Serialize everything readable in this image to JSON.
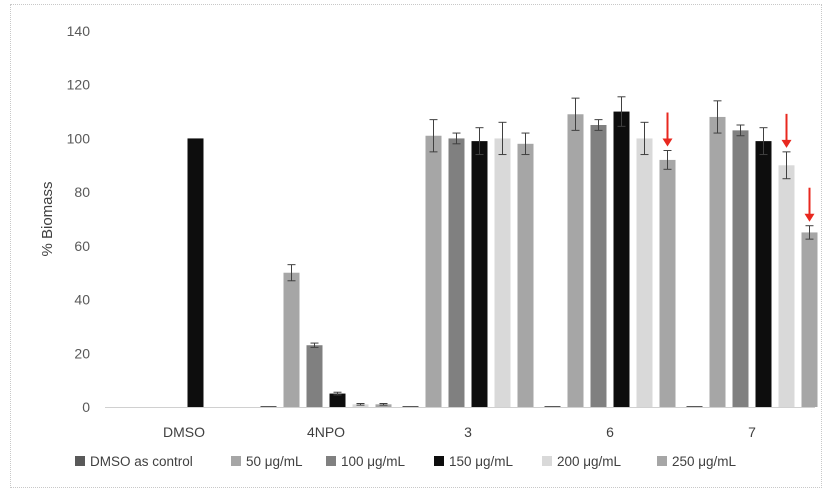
{
  "chart_data": {
    "type": "bar",
    "title": "",
    "xlabel": "",
    "ylabel": "% Biomass",
    "ylim": [
      0,
      140
    ],
    "yticks": [
      "0",
      "20",
      "40",
      "60",
      "80",
      "100",
      "120",
      "140"
    ],
    "grid": false,
    "legend_position": "bottom",
    "categories": [
      "DMSO",
      "4NPO",
      "3",
      "6",
      "7"
    ],
    "series": [
      {
        "name": "DMSO as control",
        "color": "#595959",
        "values": [
          null,
          0,
          0,
          0,
          0
        ],
        "errors": [
          0,
          0,
          0,
          0,
          0
        ]
      },
      {
        "name": "50 μg/mL",
        "color": "#a6a6a6",
        "values": [
          null,
          50,
          101,
          109,
          108
        ],
        "errors": [
          0,
          3,
          6,
          6,
          6
        ]
      },
      {
        "name": "100 μg/mL",
        "color": "#808080",
        "values": [
          null,
          23,
          100,
          105,
          103
        ],
        "errors": [
          0,
          0.8,
          2,
          2,
          2
        ]
      },
      {
        "name": "150 μg/mL",
        "color": "#0d0d0d",
        "values": [
          100,
          5,
          99,
          110,
          99
        ],
        "errors": [
          0,
          0.5,
          5,
          5.5,
          5
        ]
      },
      {
        "name": "200 μg/mL",
        "color": "#d9d9d9",
        "values": [
          null,
          1,
          100,
          100,
          90
        ],
        "errors": [
          0,
          0.3,
          6,
          6,
          5
        ]
      },
      {
        "name": "250 μg/mL",
        "color": "#a6a6a6",
        "values": [
          null,
          1,
          98,
          92,
          65
        ],
        "errors": [
          0,
          0.3,
          4,
          3.5,
          2.5
        ]
      }
    ],
    "annotations": [
      {
        "type": "arrow",
        "color": "#e8281f",
        "category": "6",
        "series": "250 μg/mL"
      },
      {
        "type": "arrow",
        "color": "#e8281f",
        "category": "7",
        "series": "200 μg/mL"
      },
      {
        "type": "arrow",
        "color": "#e8281f",
        "category": "7",
        "series": "250 μg/mL"
      }
    ]
  }
}
